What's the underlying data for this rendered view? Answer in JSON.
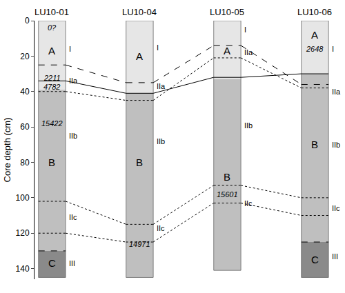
{
  "chart_data": {
    "type": "stratigraphic_columns",
    "ylabel": "Core depth (cm)",
    "ylim": [
      0,
      146
    ],
    "yticks": [
      0,
      20,
      40,
      60,
      80,
      100,
      120,
      140
    ],
    "cores": [
      {
        "name": "LU10-01",
        "top": 0,
        "bottom": 145,
        "units": [
          {
            "label": "A",
            "top": 0,
            "bottom": 39,
            "label_depth": 17,
            "color": "#e6e6e6"
          },
          {
            "label": "B",
            "top": 39,
            "bottom": 130,
            "label_depth": 80,
            "color": "#bfbfbf"
          },
          {
            "label": "C",
            "top": 130,
            "bottom": 145,
            "label_depth": 137,
            "color": "#8a8a8a"
          }
        ],
        "ages": [
          {
            "label": "0?",
            "depth": 4
          },
          {
            "label": "2211",
            "depth": 32.5
          },
          {
            "label": "4782",
            "depth": 37.5
          },
          {
            "label": "15422",
            "depth": 58
          }
        ],
        "subunits": [
          {
            "label": "I",
            "depth": 16
          },
          {
            "label": "IIa",
            "depth": 34
          },
          {
            "label": "IIb",
            "depth": 65
          },
          {
            "label": "IIc",
            "depth": 111
          },
          {
            "label": "III",
            "depth": 137
          }
        ]
      },
      {
        "name": "LU10-04",
        "top": 0,
        "bottom": 145,
        "units": [
          {
            "label": "A",
            "top": 0,
            "bottom": 41,
            "label_depth": 20,
            "color": "#e6e6e6"
          },
          {
            "label": "B",
            "top": 41,
            "bottom": 145,
            "label_depth": 80,
            "color": "#bfbfbf"
          }
        ],
        "ages": [
          {
            "label": "14971",
            "depth": 126
          }
        ],
        "subunits": [
          {
            "label": "I",
            "depth": 15
          },
          {
            "label": "IIa",
            "depth": 37
          },
          {
            "label": "IIb",
            "depth": 68
          },
          {
            "label": "IIc",
            "depth": 117
          }
        ]
      },
      {
        "name": "LU10-05",
        "top": 0,
        "bottom": 141,
        "units": [
          {
            "label": "A",
            "top": 0,
            "bottom": 33,
            "label_depth": 17,
            "color": "#e6e6e6"
          },
          {
            "label": "B",
            "top": 33,
            "bottom": 141,
            "label_depth": 88,
            "color": "#bfbfbf"
          }
        ],
        "ages": [
          {
            "label": "15601",
            "depth": 98
          }
        ],
        "subunits": [
          {
            "label": "I",
            "depth": 5
          },
          {
            "label": "IIa",
            "depth": 18
          },
          {
            "label": "IIb",
            "depth": 59
          },
          {
            "label": "IIc",
            "depth": 103
          }
        ]
      },
      {
        "name": "LU10-06",
        "top": 0,
        "bottom": 145,
        "units": [
          {
            "label": "A",
            "top": 0,
            "bottom": 30,
            "label_depth": 8,
            "color": "#e6e6e6"
          },
          {
            "label": "B",
            "top": 30,
            "bottom": 125,
            "label_depth": 70,
            "color": "#bfbfbf"
          },
          {
            "label": "C",
            "top": 125,
            "bottom": 145,
            "label_depth": 135,
            "color": "#8a8a8a"
          }
        ],
        "ages": [
          {
            "label": "2648",
            "depth": 16
          }
        ],
        "subunits": [
          {
            "label": "I",
            "depth": 16
          },
          {
            "label": "IIa",
            "depth": 40
          },
          {
            "label": "IIb",
            "depth": 70
          },
          {
            "label": "IIc",
            "depth": 106
          },
          {
            "label": "III",
            "depth": 133
          }
        ]
      }
    ],
    "correlation_lines": [
      {
        "line_style": "dashed",
        "depths": [
          25,
          35,
          14,
          36
        ]
      },
      {
        "line_style": "solid",
        "depths": [
          34,
          41,
          32,
          30
        ]
      },
      {
        "line_style": "dotted",
        "depths": [
          40,
          45,
          21,
          38
        ]
      },
      {
        "line_style": "dotted",
        "depths": [
          102,
          115,
          93,
          100
        ]
      },
      {
        "line_style": "dotted",
        "depths": [
          120,
          125,
          103,
          110
        ]
      },
      {
        "line_style": "dashed",
        "depths": [
          130,
          null,
          null,
          125
        ]
      }
    ]
  }
}
